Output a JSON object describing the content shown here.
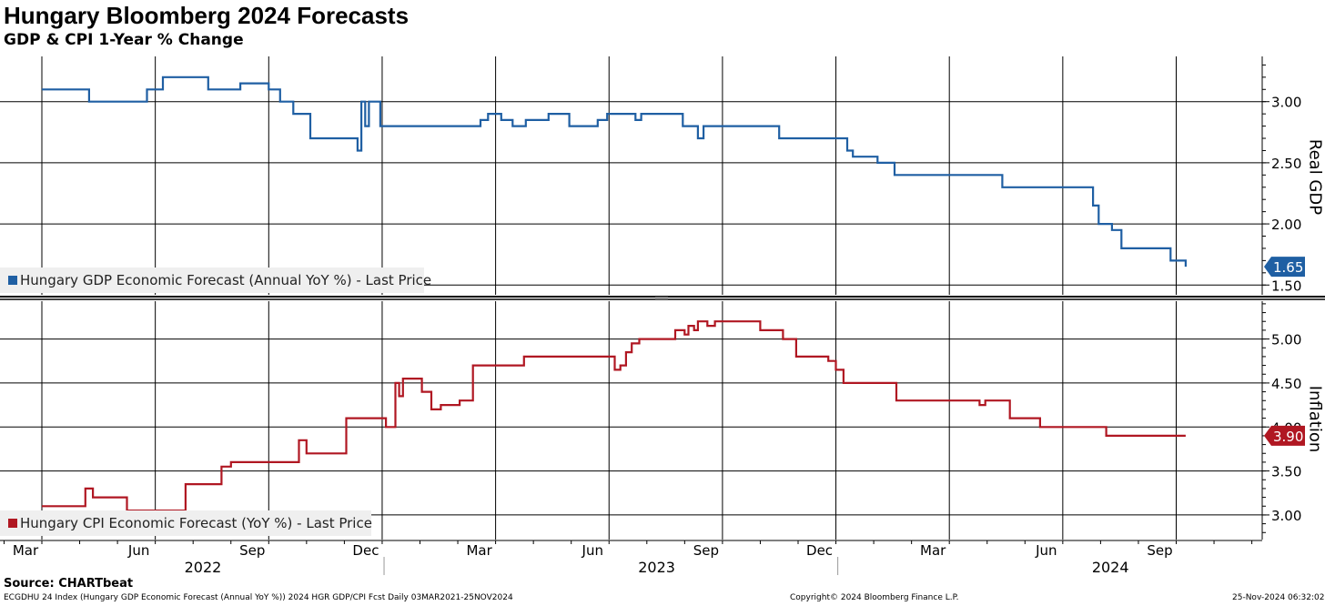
{
  "title": "Hungary Bloomberg 2024 Forecasts",
  "subtitle": "GDP & CPI 1-Year % Change",
  "source": "Source: CHARTbeat",
  "footer": {
    "left": "ECGDHU 24 Index (Hungary GDP Economic Forecast (Annual YoY %)) 2024 HGR GDP/CPI Fcst  Daily 03MAR2021-25NOV2024",
    "center": "Copyright© 2024 Bloomberg Finance L.P.",
    "right": "25-Nov-2024 06:32:02"
  },
  "colors": {
    "gdp": "#1f5fa3",
    "cpi": "#b01722",
    "grid": "#000000"
  },
  "chart_data": [
    {
      "type": "line",
      "name": "gdp-panel",
      "axis_title": "Real GDP",
      "legend": "Hungary GDP Economic Forecast (Annual YoY %) - Last Price",
      "last_label": "1.65",
      "ylim": [
        1.42,
        3.37
      ],
      "yticks": [
        1.5,
        2.0,
        2.5,
        3.0
      ],
      "ytick_labels": [
        "1.50",
        "2.00",
        "2.50",
        "3.00"
      ],
      "x_unit": "months since 1-Mar-2022",
      "series": [
        {
          "name": "Hungary GDP Economic Forecast (Annual YoY %) - Last Price",
          "x": [
            0,
            1.1,
            1.25,
            2.7,
            2.78,
            3.1,
            3.2,
            4.25,
            4.4,
            5.1,
            5.25,
            5.9,
            6.0,
            6.3,
            6.5,
            6.65,
            7.1,
            7.7,
            8.35,
            8.38,
            8.45,
            8.55,
            8.65,
            8.75,
            8.95,
            11.45,
            11.6,
            11.8,
            12.15,
            12.45,
            12.8,
            13.4,
            13.55,
            13.95,
            14.05,
            14.7,
            14.95,
            15.6,
            15.7,
            15.75,
            15.85,
            16.95,
            17.3,
            17.35,
            17.5,
            17.9,
            18.05,
            19.35,
            19.5,
            20.95,
            21.3,
            21.45,
            21.9,
            22.1,
            22.55,
            23.3,
            23.5,
            25.4,
            27.65,
            27.8,
            27.95,
            28.3,
            28.55,
            29.75,
            29.85,
            30.25
          ],
          "y": [
            3.1,
            3.1,
            3.0,
            3.0,
            3.1,
            3.1,
            3.2,
            3.2,
            3.1,
            3.1,
            3.15,
            3.15,
            3.1,
            3.0,
            3.0,
            2.9,
            2.7,
            2.7,
            2.6,
            2.6,
            3.0,
            2.8,
            3.0,
            3.0,
            2.8,
            2.8,
            2.85,
            2.9,
            2.85,
            2.8,
            2.85,
            2.9,
            2.9,
            2.8,
            2.8,
            2.85,
            2.9,
            2.9,
            2.85,
            2.85,
            2.9,
            2.8,
            2.8,
            2.7,
            2.8,
            2.8,
            2.8,
            2.8,
            2.7,
            2.7,
            2.6,
            2.55,
            2.55,
            2.5,
            2.4,
            2.4,
            2.4,
            2.3,
            2.3,
            2.15,
            2.0,
            1.95,
            1.8,
            1.8,
            1.7,
            1.65
          ]
        }
      ]
    },
    {
      "type": "line",
      "name": "cpi-panel",
      "axis_title": "Inflation",
      "legend": "Hungary CPI Economic Forecast (YoY %) - Last Price",
      "last_label": "3.90",
      "ylim": [
        2.72,
        5.43
      ],
      "yticks": [
        3.0,
        3.5,
        4.0,
        4.5,
        5.0
      ],
      "ytick_labels": [
        "3.00",
        "3.50",
        "4.00",
        "4.50",
        "5.00"
      ],
      "x_unit": "months since 1-Mar-2022",
      "series": [
        {
          "name": "Hungary CPI Economic Forecast (YoY %) - Last Price",
          "x": [
            0,
            1.0,
            1.15,
            1.35,
            2.1,
            2.25,
            3.0,
            3.8,
            4.55,
            4.75,
            5.0,
            6.7,
            6.8,
            7.0,
            7.8,
            8.05,
            8.9,
            9.1,
            9.35,
            9.45,
            9.55,
            9.75,
            10.05,
            10.3,
            10.55,
            11.05,
            11.4,
            12.75,
            15.05,
            15.15,
            15.3,
            15.45,
            15.6,
            15.8,
            16.6,
            16.75,
            17.0,
            17.1,
            17.25,
            17.35,
            17.6,
            17.8,
            19.0,
            19.6,
            19.8,
            19.95,
            20.8,
            21.0,
            21.2,
            22.6,
            22.85,
            24.8,
            24.95,
            25.6,
            26.4,
            27.9,
            28.15,
            30.25
          ],
          "y": [
            3.1,
            3.1,
            3.3,
            3.2,
            3.2,
            3.05,
            3.05,
            3.35,
            3.35,
            3.55,
            3.6,
            3.6,
            3.85,
            3.7,
            3.7,
            4.1,
            4.1,
            4.0,
            4.5,
            4.35,
            4.55,
            4.55,
            4.4,
            4.2,
            4.25,
            4.3,
            4.7,
            4.8,
            4.8,
            4.65,
            4.7,
            4.85,
            4.95,
            5.0,
            5.0,
            5.1,
            5.05,
            5.15,
            5.1,
            5.2,
            5.15,
            5.2,
            5.1,
            5.0,
            5.0,
            4.8,
            4.75,
            4.65,
            4.5,
            4.3,
            4.3,
            4.25,
            4.3,
            4.1,
            4.0,
            4.0,
            3.9,
            3.9
          ]
        }
      ]
    }
  ],
  "x_axis": {
    "tick_labels": [
      "Mar",
      "Jun",
      "Sep",
      "Dec",
      "Mar",
      "Jun",
      "Sep",
      "Dec",
      "Mar",
      "Jun",
      "Sep"
    ],
    "tick_months": [
      0,
      3,
      6,
      9,
      12,
      15,
      18,
      21,
      24,
      27,
      30
    ],
    "year_labels": [
      "2022",
      "2023",
      "2024"
    ]
  }
}
